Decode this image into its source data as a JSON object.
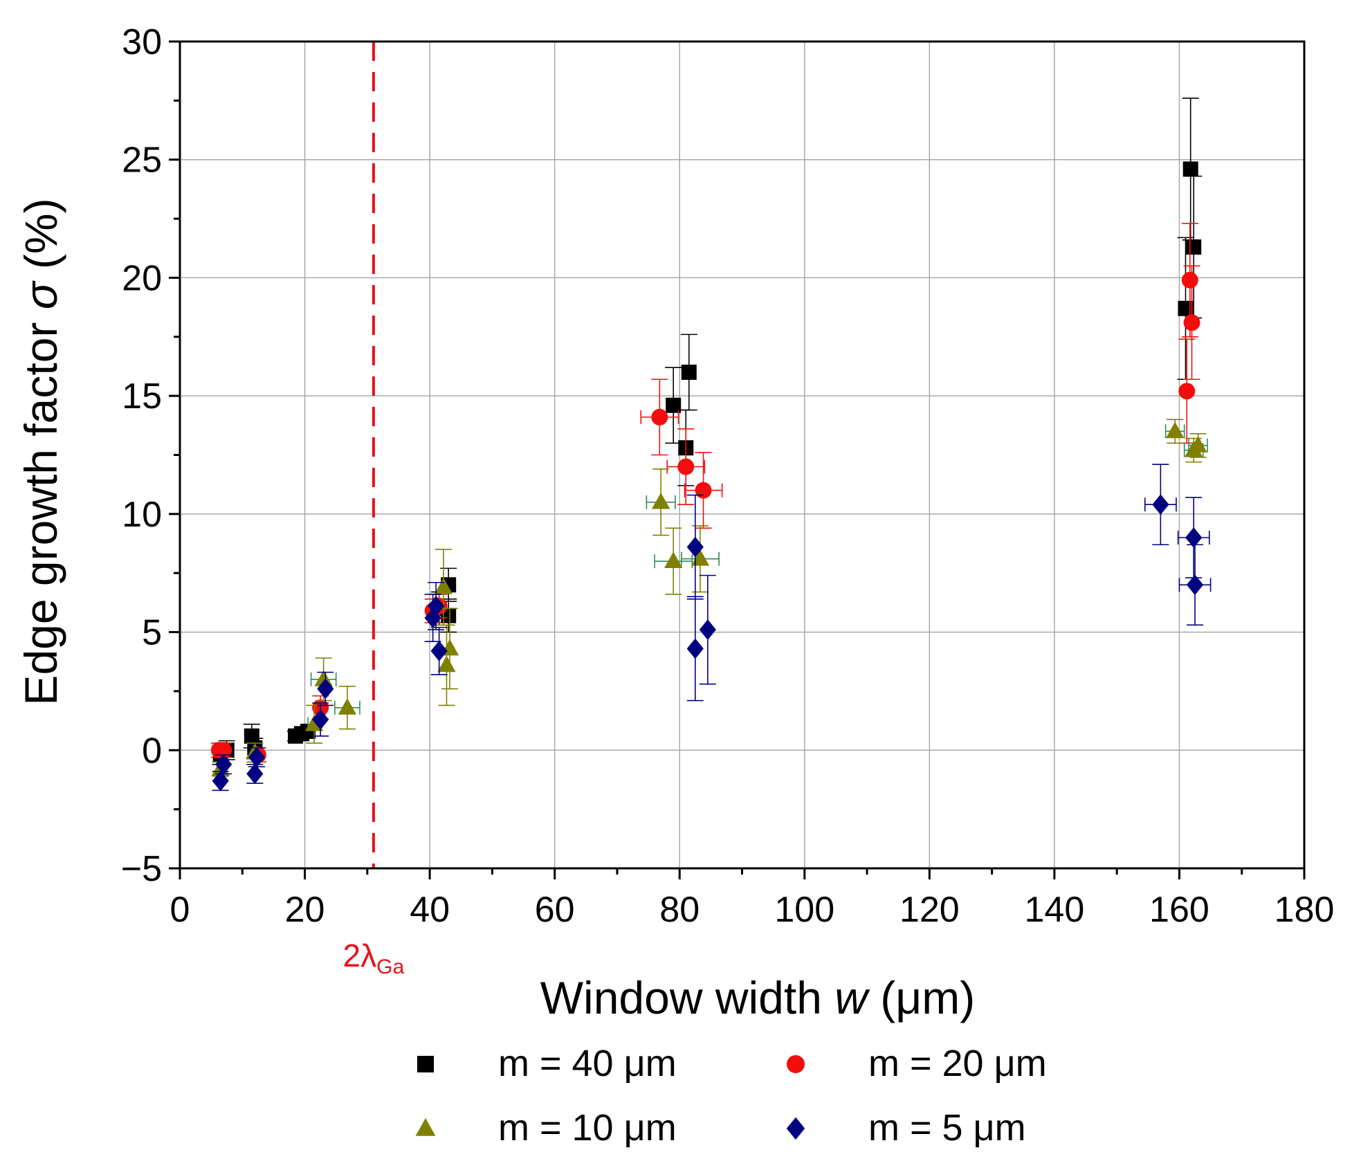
{
  "chart_data": {
    "type": "scatter",
    "title": "",
    "xlabel": "Window width",
    "xlabel_var": "w",
    "xlabel_unit": "(μm)",
    "ylabel": "Edge growth factor",
    "ylabel_var": "σ",
    "ylabel_unit": "(%)",
    "xlim": [
      0,
      180
    ],
    "ylim": [
      -5,
      30
    ],
    "x_ticks": [
      0,
      20,
      40,
      60,
      80,
      100,
      120,
      140,
      160,
      180
    ],
    "y_ticks": [
      -5,
      0,
      5,
      10,
      15,
      20,
      25,
      30
    ],
    "x_tick_labels": [
      "0",
      "20",
      "40",
      "60",
      "80",
      "100",
      "120",
      "140",
      "160",
      "180"
    ],
    "y_tick_labels": [
      "−5",
      "0",
      "5",
      "10",
      "15",
      "20",
      "25",
      "30"
    ],
    "grid": true,
    "reference_line": {
      "x": 31,
      "label_main": "2λ",
      "label_sub": "Ga",
      "color": "#e8111a"
    },
    "legend_position": "bottom",
    "series": [
      {
        "name": "m = 40 μm",
        "marker": "square",
        "color": "#000000",
        "points": [
          {
            "x": 6.5,
            "y": -0.2,
            "yerr": 0.4,
            "xerr": 0
          },
          {
            "x": 7.5,
            "y": 0.0,
            "yerr": 0.4,
            "xerr": 0
          },
          {
            "x": 11.5,
            "y": 0.6,
            "yerr": 0.5,
            "xerr": 0
          },
          {
            "x": 12.0,
            "y": 0.1,
            "yerr": 0.4,
            "xerr": 0
          },
          {
            "x": 18.5,
            "y": 0.6,
            "yerr": 0.2,
            "xerr": 0
          },
          {
            "x": 19.5,
            "y": 0.7,
            "yerr": 0.2,
            "xerr": 0
          },
          {
            "x": 20.5,
            "y": 0.8,
            "yerr": 0.2,
            "xerr": 0
          },
          {
            "x": 41.5,
            "y": 6.0,
            "yerr": 0.7,
            "xerr": 0
          },
          {
            "x": 43.0,
            "y": 7.0,
            "yerr": 0.7,
            "xerr": 0
          },
          {
            "x": 43.0,
            "y": 5.7,
            "yerr": 0.7,
            "xerr": 0
          },
          {
            "x": 79.0,
            "y": 14.6,
            "yerr": 1.6,
            "xerr": 0
          },
          {
            "x": 81.0,
            "y": 12.8,
            "yerr": 1.6,
            "xerr": 0
          },
          {
            "x": 81.5,
            "y": 16.0,
            "yerr": 1.6,
            "xerr": 0
          },
          {
            "x": 161.0,
            "y": 18.7,
            "yerr": 3.0,
            "xerr": 0
          },
          {
            "x": 161.8,
            "y": 24.6,
            "yerr": 3.0,
            "xerr": 0
          },
          {
            "x": 162.3,
            "y": 21.3,
            "yerr": 3.0,
            "xerr": 0
          }
        ]
      },
      {
        "name": "m = 20 μm",
        "marker": "circle",
        "color": "#f40d0d",
        "points": [
          {
            "x": 6.3,
            "y": 0.0,
            "yerr": 0.3,
            "xerr": 0
          },
          {
            "x": 7.0,
            "y": 0.0,
            "yerr": 0.3,
            "xerr": 0
          },
          {
            "x": 12.5,
            "y": -0.2,
            "yerr": 0.3,
            "xerr": 0
          },
          {
            "x": 22.5,
            "y": 1.8,
            "yerr": 0.5,
            "xerr": 0
          },
          {
            "x": 40.5,
            "y": 5.9,
            "yerr": 0.5,
            "xerr": 0
          },
          {
            "x": 41.5,
            "y": 6.1,
            "yerr": 0.5,
            "xerr": 0
          },
          {
            "x": 76.8,
            "y": 14.1,
            "yerr": 1.6,
            "xerr": 3.0
          },
          {
            "x": 81.0,
            "y": 12.0,
            "yerr": 1.6,
            "xerr": 3.0
          },
          {
            "x": 83.8,
            "y": 11.0,
            "yerr": 1.6,
            "xerr": 3.0
          },
          {
            "x": 161.2,
            "y": 15.2,
            "yerr": 2.2,
            "xerr": 0
          },
          {
            "x": 161.7,
            "y": 19.9,
            "yerr": 2.4,
            "xerr": 0
          },
          {
            "x": 162.0,
            "y": 18.1,
            "yerr": 2.4,
            "xerr": 0
          }
        ]
      },
      {
        "name": "m = 10 μm",
        "marker": "triangle",
        "color": "#808000",
        "points": [
          {
            "x": 6.5,
            "y": -0.8,
            "yerr": 0.3,
            "xerr": 0
          },
          {
            "x": 12.0,
            "y": -0.1,
            "yerr": 0.4,
            "xerr": 0
          },
          {
            "x": 21.5,
            "y": 1.1,
            "yerr": 0.8,
            "xerr": 1.0
          },
          {
            "x": 23.0,
            "y": 3.0,
            "yerr": 0.9,
            "xerr": 2.0
          },
          {
            "x": 26.8,
            "y": 1.8,
            "yerr": 0.9,
            "xerr": 2.0
          },
          {
            "x": 42.2,
            "y": 6.9,
            "yerr": 1.6,
            "xerr": 0
          },
          {
            "x": 42.7,
            "y": 3.6,
            "yerr": 1.7,
            "xerr": 0
          },
          {
            "x": 43.2,
            "y": 4.3,
            "yerr": 1.7,
            "xerr": 0
          },
          {
            "x": 77.0,
            "y": 10.5,
            "yerr": 1.4,
            "xerr": 2.3
          },
          {
            "x": 79.0,
            "y": 8.0,
            "yerr": 1.4,
            "xerr": 3.0
          },
          {
            "x": 83.3,
            "y": 8.1,
            "yerr": 1.4,
            "xerr": 3.0
          },
          {
            "x": 159.3,
            "y": 13.5,
            "yerr": 0.5,
            "xerr": 1.5
          },
          {
            "x": 162.3,
            "y": 12.7,
            "yerr": 0.5,
            "xerr": 1.5
          },
          {
            "x": 163.0,
            "y": 12.9,
            "yerr": 0.5,
            "xerr": 1.5
          }
        ]
      },
      {
        "name": "m = 5 μm",
        "marker": "diamond",
        "color": "#000080",
        "points": [
          {
            "x": 6.5,
            "y": -1.3,
            "yerr": 0.4,
            "xerr": 0
          },
          {
            "x": 7.0,
            "y": -0.6,
            "yerr": 0.4,
            "xerr": 0
          },
          {
            "x": 12.0,
            "y": -1.0,
            "yerr": 0.4,
            "xerr": 0
          },
          {
            "x": 12.3,
            "y": -0.3,
            "yerr": 0.4,
            "xerr": 0
          },
          {
            "x": 22.5,
            "y": 1.3,
            "yerr": 0.7,
            "xerr": 0
          },
          {
            "x": 23.3,
            "y": 2.6,
            "yerr": 0.7,
            "xerr": 0
          },
          {
            "x": 40.5,
            "y": 5.6,
            "yerr": 1.0,
            "xerr": 0
          },
          {
            "x": 41.0,
            "y": 6.1,
            "yerr": 1.0,
            "xerr": 0
          },
          {
            "x": 41.5,
            "y": 4.2,
            "yerr": 1.0,
            "xerr": 0
          },
          {
            "x": 82.5,
            "y": 8.6,
            "yerr": 2.2,
            "xerr": 0
          },
          {
            "x": 82.5,
            "y": 4.3,
            "yerr": 2.2,
            "xerr": 0
          },
          {
            "x": 84.5,
            "y": 5.1,
            "yerr": 2.3,
            "xerr": 0
          },
          {
            "x": 157.0,
            "y": 10.4,
            "yerr": 1.7,
            "xerr": 2.5
          },
          {
            "x": 162.3,
            "y": 9.0,
            "yerr": 1.7,
            "xerr": 2.5
          },
          {
            "x": 162.5,
            "y": 7.0,
            "yerr": 1.7,
            "xerr": 2.5
          }
        ]
      }
    ]
  }
}
